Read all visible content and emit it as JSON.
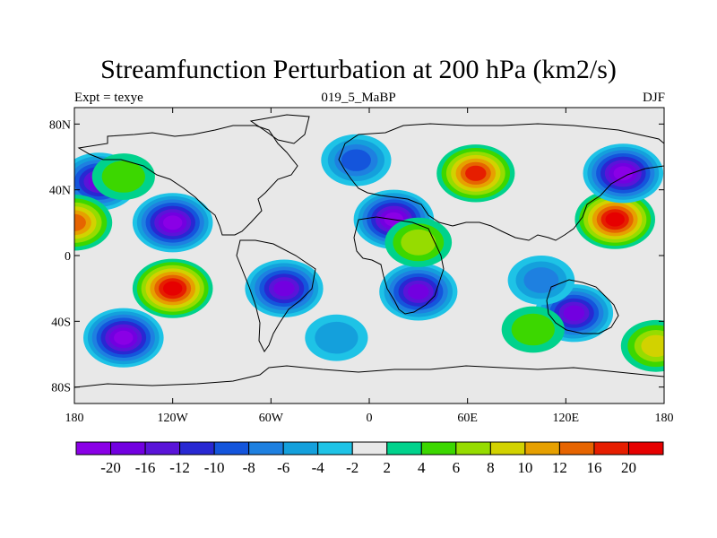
{
  "title": "Streamfunction Perturbation at 200 hPa (km2/s)",
  "subtitle_left": "Expt = texye",
  "subtitle_center": "019_5_MaBP",
  "subtitle_right": "DJF",
  "colors": {
    "background_field": "#e8e8e8",
    "coast": "#000000"
  },
  "chart_data": {
    "type": "heatmap",
    "field": "200 hPa streamfunction perturbation",
    "x_ticks": [
      "180",
      "120W",
      "60W",
      "0",
      "60E",
      "120E",
      "180"
    ],
    "x_tick_values": [
      -180,
      -120,
      -60,
      0,
      60,
      120,
      180
    ],
    "y_ticks": [
      "80N",
      "40N",
      "0",
      "40S",
      "80S"
    ],
    "y_tick_values": [
      80,
      40,
      0,
      -40,
      -80
    ],
    "xlim": [
      -180,
      180
    ],
    "ylim": [
      -90,
      90
    ],
    "colorbar": {
      "labels": [
        "-20",
        "-16",
        "-12",
        "-10",
        "-8",
        "-6",
        "-4",
        "-2",
        "2",
        "4",
        "6",
        "8",
        "10",
        "12",
        "16",
        "20"
      ],
      "colors": [
        "#8a00e6",
        "#7200e0",
        "#5a14d8",
        "#2828d2",
        "#1455dc",
        "#1e80e0",
        "#14a0dc",
        "#1ec3e6",
        "#e8e8e8",
        "#00d28c",
        "#3cd700",
        "#96dc00",
        "#d2d200",
        "#e6a000",
        "#e66400",
        "#e61e00",
        "#e60000"
      ]
    },
    "features": [
      {
        "lon": -120,
        "lat": 20,
        "value": -20
      },
      {
        "lon": -165,
        "lat": 45,
        "value": -16
      },
      {
        "lon": -120,
        "lat": -20,
        "value": 20
      },
      {
        "lon": -150,
        "lat": 48,
        "value": 4
      },
      {
        "lon": -52,
        "lat": -20,
        "value": -16
      },
      {
        "lon": -8,
        "lat": 58,
        "value": -8
      },
      {
        "lon": -20,
        "lat": -50,
        "value": -4
      },
      {
        "lon": -150,
        "lat": -50,
        "value": -20
      },
      {
        "lon": 15,
        "lat": 22,
        "value": -20
      },
      {
        "lon": 30,
        "lat": -22,
        "value": -16
      },
      {
        "lon": 65,
        "lat": 50,
        "value": 16
      },
      {
        "lon": 150,
        "lat": 22,
        "value": 20
      },
      {
        "lon": 155,
        "lat": 50,
        "value": -20
      },
      {
        "lon": 125,
        "lat": -35,
        "value": -16
      },
      {
        "lon": 105,
        "lat": -15,
        "value": -6
      },
      {
        "lon": 30,
        "lat": 8,
        "value": 6
      },
      {
        "lon": 175,
        "lat": -55,
        "value": 8
      },
      {
        "lon": -180,
        "lat": 20,
        "value": 14
      },
      {
        "lon": 100,
        "lat": -45,
        "value": 4
      }
    ]
  }
}
